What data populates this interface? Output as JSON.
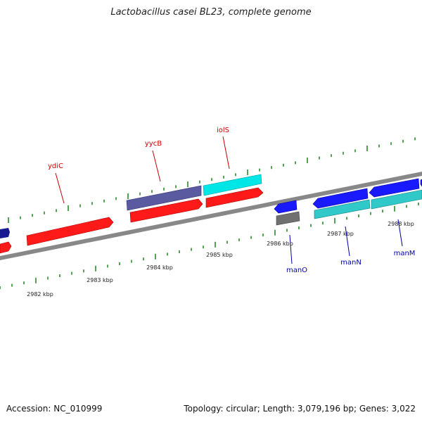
{
  "title": "Lactobacillus casei BL23, complete genome",
  "footer": {
    "accession": "Accession: NC_010999",
    "summary": "Topology: circular; Length: 3,079,196 bp; Genes: 3,022"
  },
  "colors": {
    "backbone": "#888888",
    "ticks": "#2a8a2a",
    "forward_cds": "#ff1a1a",
    "reverse_cds": "#1a1aff",
    "forward_feature": "#00e5e5",
    "reverse_feature": "#30c8c8",
    "dark_feature": "#5a5aa0",
    "navy_feature": "#1a1a90",
    "grey_feature": "#707070",
    "label_red": "#cc0000",
    "label_blue": "#0000aa"
  },
  "scale_labels": [
    {
      "text": "2982 kbp"
    },
    {
      "text": "2983 kbp"
    },
    {
      "text": "2984 kbp"
    },
    {
      "text": "2985 kbp"
    },
    {
      "text": "2986 kbp"
    },
    {
      "text": "2987 kbp"
    },
    {
      "text": "2988 kbp"
    }
  ],
  "gene_labels": [
    {
      "name": "ydiC",
      "strand": "forward"
    },
    {
      "name": "yycB",
      "strand": "forward"
    },
    {
      "name": "iolS",
      "strand": "forward"
    },
    {
      "name": "manO",
      "strand": "reverse"
    },
    {
      "name": "manN",
      "strand": "reverse"
    },
    {
      "name": "manM",
      "strand": "reverse"
    }
  ]
}
